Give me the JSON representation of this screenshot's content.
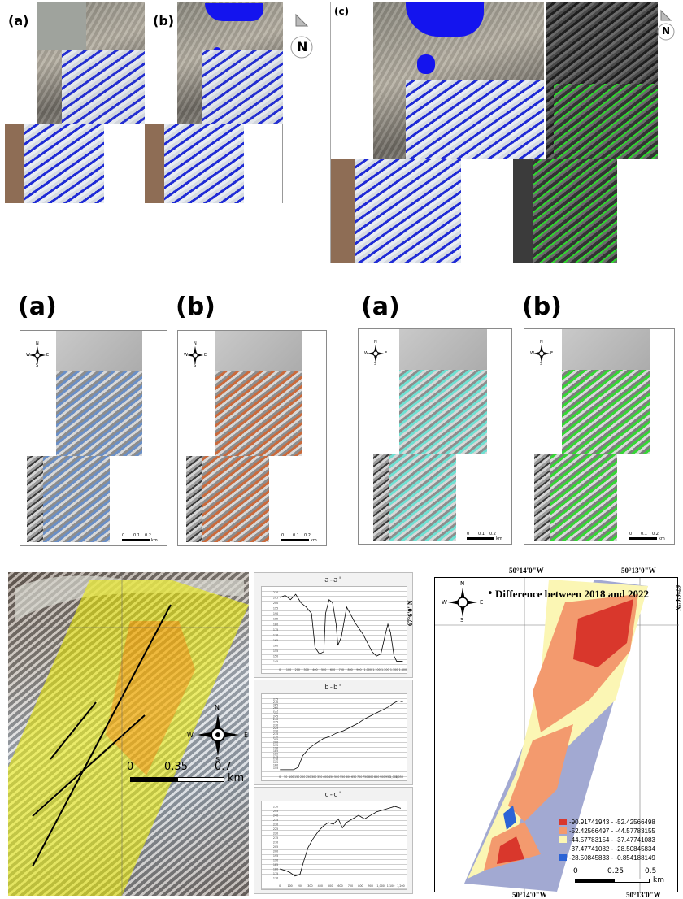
{
  "top_figure": {
    "labels": {
      "a": "(a)",
      "b": "(b)",
      "c": "(c)"
    },
    "north_letter": "N"
  },
  "mid_figure": {
    "labels": [
      "(a)",
      "(b)",
      "(a)",
      "(b)"
    ],
    "compass": {
      "n": "N",
      "s": "S",
      "e": "E",
      "w": "W"
    },
    "scale_ticks": [
      "0",
      "0.1",
      "0.2"
    ],
    "scale_unit": "km",
    "overlay_colors": [
      "#6a8fc6",
      "#c96a3c",
      "#6fe0d2",
      "#35d635"
    ]
  },
  "bottom_left": {
    "compass": {
      "n": "N",
      "s": "S",
      "e": "E",
      "w": "W"
    },
    "scale_ticks": [
      "0",
      "0.35",
      "0.7"
    ],
    "scale_unit": "km",
    "transect_labels": [
      "a-a'",
      "b-b'",
      "c-c'"
    ]
  },
  "profiles": [
    {
      "title": "a-a'",
      "y_ticks": [
        "210",
        "205",
        "200",
        "195",
        "190",
        "185",
        "180",
        "175",
        "170",
        "165",
        "160",
        "155",
        "150",
        "145"
      ],
      "x_ticks": [
        "0",
        "100",
        "200",
        "300",
        "400",
        "500",
        "600",
        "700",
        "800",
        "900",
        "1,000",
        "1,100",
        "1,200",
        "1,300",
        "1,400"
      ],
      "points": [
        [
          0,
          205
        ],
        [
          60,
          207
        ],
        [
          120,
          203
        ],
        [
          180,
          208
        ],
        [
          240,
          200
        ],
        [
          300,
          196
        ],
        [
          360,
          190
        ],
        [
          400,
          158
        ],
        [
          450,
          152
        ],
        [
          500,
          154
        ],
        [
          520,
          190
        ],
        [
          560,
          203
        ],
        [
          600,
          200
        ],
        [
          640,
          180
        ],
        [
          660,
          160
        ],
        [
          700,
          168
        ],
        [
          760,
          196
        ],
        [
          800,
          190
        ],
        [
          850,
          182
        ],
        [
          900,
          176
        ],
        [
          950,
          170
        ],
        [
          1000,
          162
        ],
        [
          1050,
          154
        ],
        [
          1100,
          150
        ],
        [
          1150,
          152
        ],
        [
          1200,
          170
        ],
        [
          1230,
          180
        ],
        [
          1260,
          172
        ],
        [
          1300,
          150
        ],
        [
          1330,
          145
        ],
        [
          1400,
          145
        ]
      ],
      "x_range": [
        0,
        1400
      ],
      "y_range": [
        143,
        212
      ]
    },
    {
      "title": "b-b'",
      "y_ticks": [
        "275",
        "270",
        "265",
        "260",
        "255",
        "250",
        "245",
        "240",
        "235",
        "230",
        "225",
        "220",
        "215",
        "210",
        "205",
        "200",
        "195",
        "190",
        "185",
        "180",
        "175",
        "170",
        "165",
        "160",
        "155"
      ],
      "x_ticks": [
        "0",
        "50",
        "100",
        "150",
        "200",
        "250",
        "300",
        "350",
        "400",
        "450",
        "500",
        "550",
        "600",
        "650",
        "700",
        "750",
        "800",
        "850",
        "900",
        "950",
        "1,000",
        "1,050"
      ],
      "points": [
        [
          0,
          152
        ],
        [
          120,
          152
        ],
        [
          160,
          156
        ],
        [
          200,
          176
        ],
        [
          260,
          190
        ],
        [
          320,
          198
        ],
        [
          380,
          206
        ],
        [
          440,
          210
        ],
        [
          500,
          216
        ],
        [
          560,
          220
        ],
        [
          620,
          226
        ],
        [
          680,
          232
        ],
        [
          740,
          240
        ],
        [
          800,
          246
        ],
        [
          860,
          252
        ],
        [
          920,
          258
        ],
        [
          960,
          262
        ],
        [
          1000,
          268
        ],
        [
          1040,
          272
        ],
        [
          1080,
          270
        ]
      ],
      "x_range": [
        0,
        1080
      ],
      "y_range": [
        150,
        278
      ]
    },
    {
      "title": "c-c'",
      "y_ticks": [
        "250",
        "245",
        "240",
        "235",
        "230",
        "225",
        "220",
        "215",
        "210",
        "205",
        "200",
        "195",
        "190",
        "185",
        "180",
        "175",
        "170"
      ],
      "x_ticks": [
        "0",
        "100",
        "200",
        "300",
        "400",
        "500",
        "600",
        "700",
        "800",
        "900",
        "1,000",
        "1,100",
        "1,200"
      ],
      "points": [
        [
          0,
          180
        ],
        [
          60,
          178
        ],
        [
          100,
          176
        ],
        [
          150,
          172
        ],
        [
          200,
          174
        ],
        [
          240,
          190
        ],
        [
          280,
          204
        ],
        [
          330,
          214
        ],
        [
          380,
          222
        ],
        [
          430,
          228
        ],
        [
          480,
          232
        ],
        [
          530,
          230
        ],
        [
          580,
          236
        ],
        [
          620,
          226
        ],
        [
          660,
          232
        ],
        [
          720,
          236
        ],
        [
          780,
          240
        ],
        [
          840,
          236
        ],
        [
          900,
          240
        ],
        [
          960,
          244
        ],
        [
          1020,
          246
        ],
        [
          1080,
          248
        ],
        [
          1140,
          250
        ],
        [
          1200,
          248
        ]
      ],
      "x_range": [
        0,
        1220
      ],
      "y_range": [
        168,
        252
      ]
    }
  ],
  "right_map": {
    "title": "Difference between 2018 and 2022",
    "lon_labels_top": [
      "50°14'0\"W",
      "50°13'0\"W"
    ],
    "lon_labels_bottom": [
      "50°14'0\"W",
      "50°13'0\"W"
    ],
    "lat_label_left": "67°6'0\"N",
    "lat_label_right": "67°6'0\"N",
    "compass": {
      "n": "N",
      "s": "S",
      "e": "E",
      "w": "W"
    },
    "scale_ticks": [
      "0",
      "0.25",
      "0.5"
    ],
    "scale_unit": "km",
    "legend": [
      {
        "label": "-90.91741943 - -52.42566498",
        "color": "#d9372c"
      },
      {
        "label": "-52.42566497 - -44.57783155",
        "color": "#f39a6e"
      },
      {
        "label": "-44.57783154 - -37.47741083",
        "color": "#fbf6b4"
      },
      {
        "label": "-37.47741082 - -28.50845834",
        "color": "#a2a9d2"
      },
      {
        "label": "-28.50845833 - -0.854188149",
        "color": "#2b63d6"
      }
    ]
  }
}
